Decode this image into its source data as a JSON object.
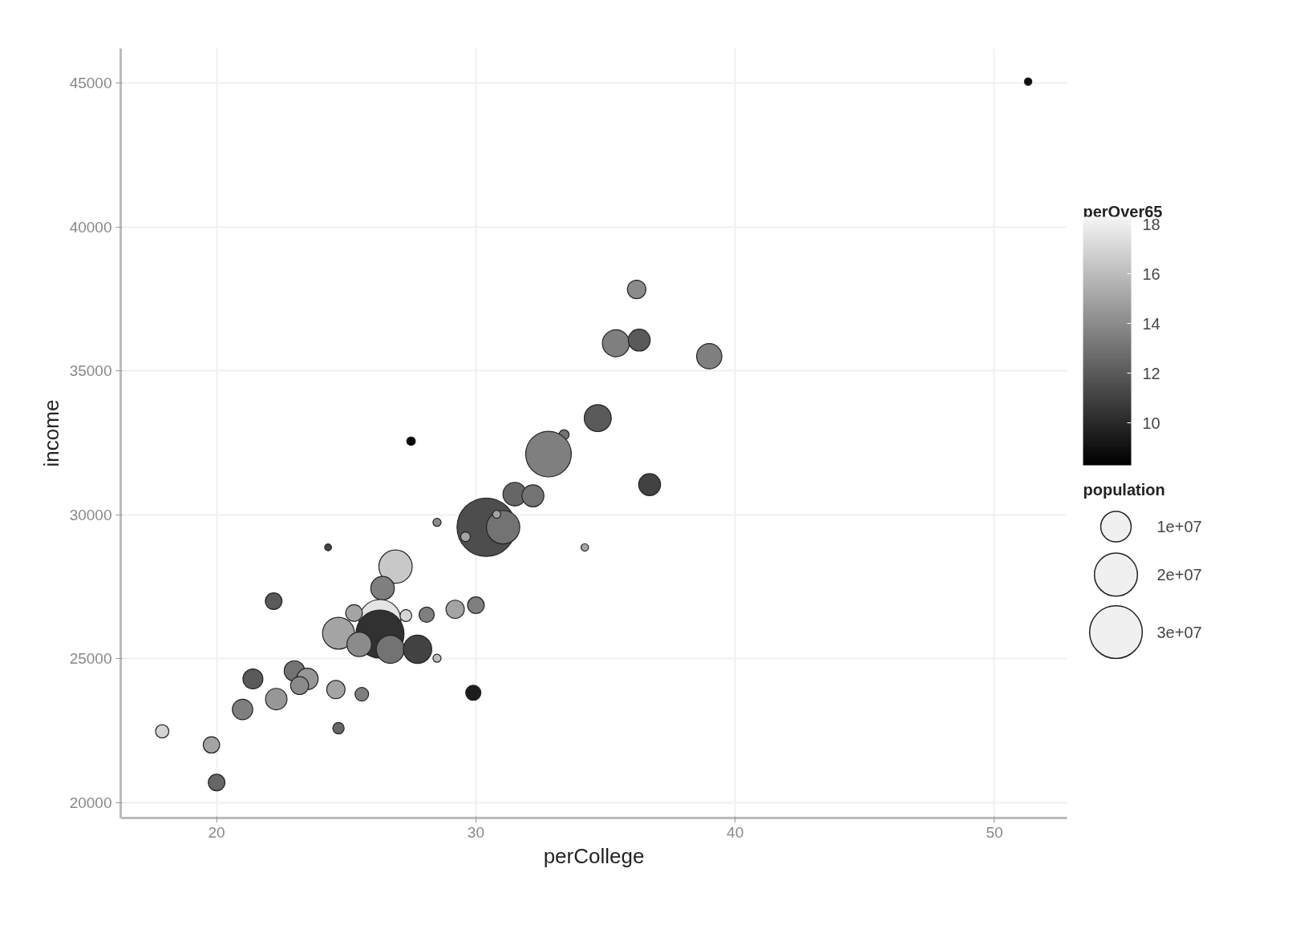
{
  "chart_data": {
    "type": "bubble",
    "xlabel": "perCollege",
    "ylabel": "income",
    "clabel": "perOver65",
    "legend_title": "population",
    "xlim": [
      16.3,
      52.8
    ],
    "ylim": [
      19470,
      46200
    ],
    "xticks": [
      20,
      30,
      40,
      50
    ],
    "yticks": [
      20000,
      25000,
      30000,
      35000,
      40000,
      45000
    ],
    "grid": true,
    "clim": [
      8.3,
      18.3
    ],
    "cticks": [
      10,
      12,
      14,
      16,
      18
    ],
    "size_legend": [
      {
        "value": 10000000,
        "label": "1e+07"
      },
      {
        "value": 20000000,
        "label": "2e+07"
      },
      {
        "value": 30000000,
        "label": "3e+07"
      }
    ],
    "x": [
      51.3,
      36.2,
      35.4,
      36.3,
      39.0,
      34.7,
      33.4,
      32.8,
      27.5,
      36.7,
      31.5,
      32.2,
      30.4,
      31.05,
      30.8,
      29.6,
      28.5,
      24.3,
      34.2,
      26.9,
      26.4,
      26.3,
      26.3,
      25.3,
      27.3,
      28.1,
      29.2,
      30.0,
      22.2,
      24.7,
      25.5,
      26.7,
      27.75,
      28.5,
      29.9,
      23.0,
      23.5,
      23.2,
      21.4,
      22.3,
      21.0,
      24.6,
      25.6,
      24.7,
      17.9,
      19.8,
      20.0
    ],
    "values": [
      45050,
      37830,
      35960,
      36070,
      35510,
      33360,
      32780,
      32110,
      32560,
      31050,
      30720,
      30660,
      29570,
      29570,
      30020,
      29240,
      29740,
      28870,
      28870,
      28200,
      27450,
      26330,
      25860,
      26590,
      26500,
      26530,
      26720,
      26860,
      27000,
      25890,
      25500,
      25330,
      25330,
      25020,
      23820,
      24580,
      24300,
      24070,
      24300,
      23600,
      23240,
      23930,
      23770,
      22590,
      22480,
      22010,
      20700
    ],
    "sizes": [
      600000,
      3700000,
      7900000,
      5200000,
      6900000,
      7900000,
      1100000,
      22500000,
      800000,
      5200000,
      6000000,
      5200000,
      37000000,
      12000000,
      700000,
      1000000,
      700000,
      500000,
      600000,
      12000000,
      6000000,
      19000000,
      25000000,
      3000000,
      1500000,
      2500000,
      3600000,
      3000000,
      3000000,
      11000000,
      6500000,
      8500000,
      8700000,
      700000,
      2500000,
      4500000,
      5000000,
      3500000,
      4300000,
      5000000,
      4500000,
      3600000,
      2000000,
      1400000,
      1900000,
      2900000,
      3000000
    ],
    "cvalues": [
      9,
      14,
      13.5,
      12,
      13.5,
      12,
      13,
      13.5,
      8.5,
      11,
      12.5,
      13,
      11.5,
      13,
      15,
      15,
      14,
      11,
      15,
      16.5,
      13.5,
      17.6,
      10.3,
      15,
      17,
      13.5,
      15,
      13.5,
      12,
      15,
      14,
      13,
      11,
      16,
      9.5,
      13,
      14.5,
      14,
      12,
      14.5,
      13.5,
      15,
      13.5,
      12.5,
      17,
      15,
      12.5
    ]
  }
}
